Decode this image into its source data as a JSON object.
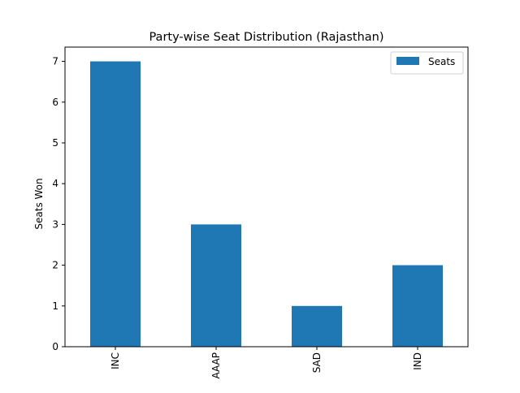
{
  "chart_data": {
    "type": "bar",
    "title": "Party-wise Seat Distribution (Rajasthan)",
    "xlabel": "",
    "ylabel": "Seats Won",
    "categories": [
      "INC",
      "AAAP",
      "SAD",
      "IND"
    ],
    "series": [
      {
        "name": "Seats",
        "values": [
          7,
          3,
          1,
          2
        ],
        "color": "#1f77b4"
      }
    ],
    "ylim": [
      0,
      7.35
    ],
    "yticks": [
      0,
      1,
      2,
      3,
      4,
      5,
      6,
      7
    ],
    "grid": false,
    "legend_position": "top-right",
    "x_tick_rotation": "vertical"
  }
}
